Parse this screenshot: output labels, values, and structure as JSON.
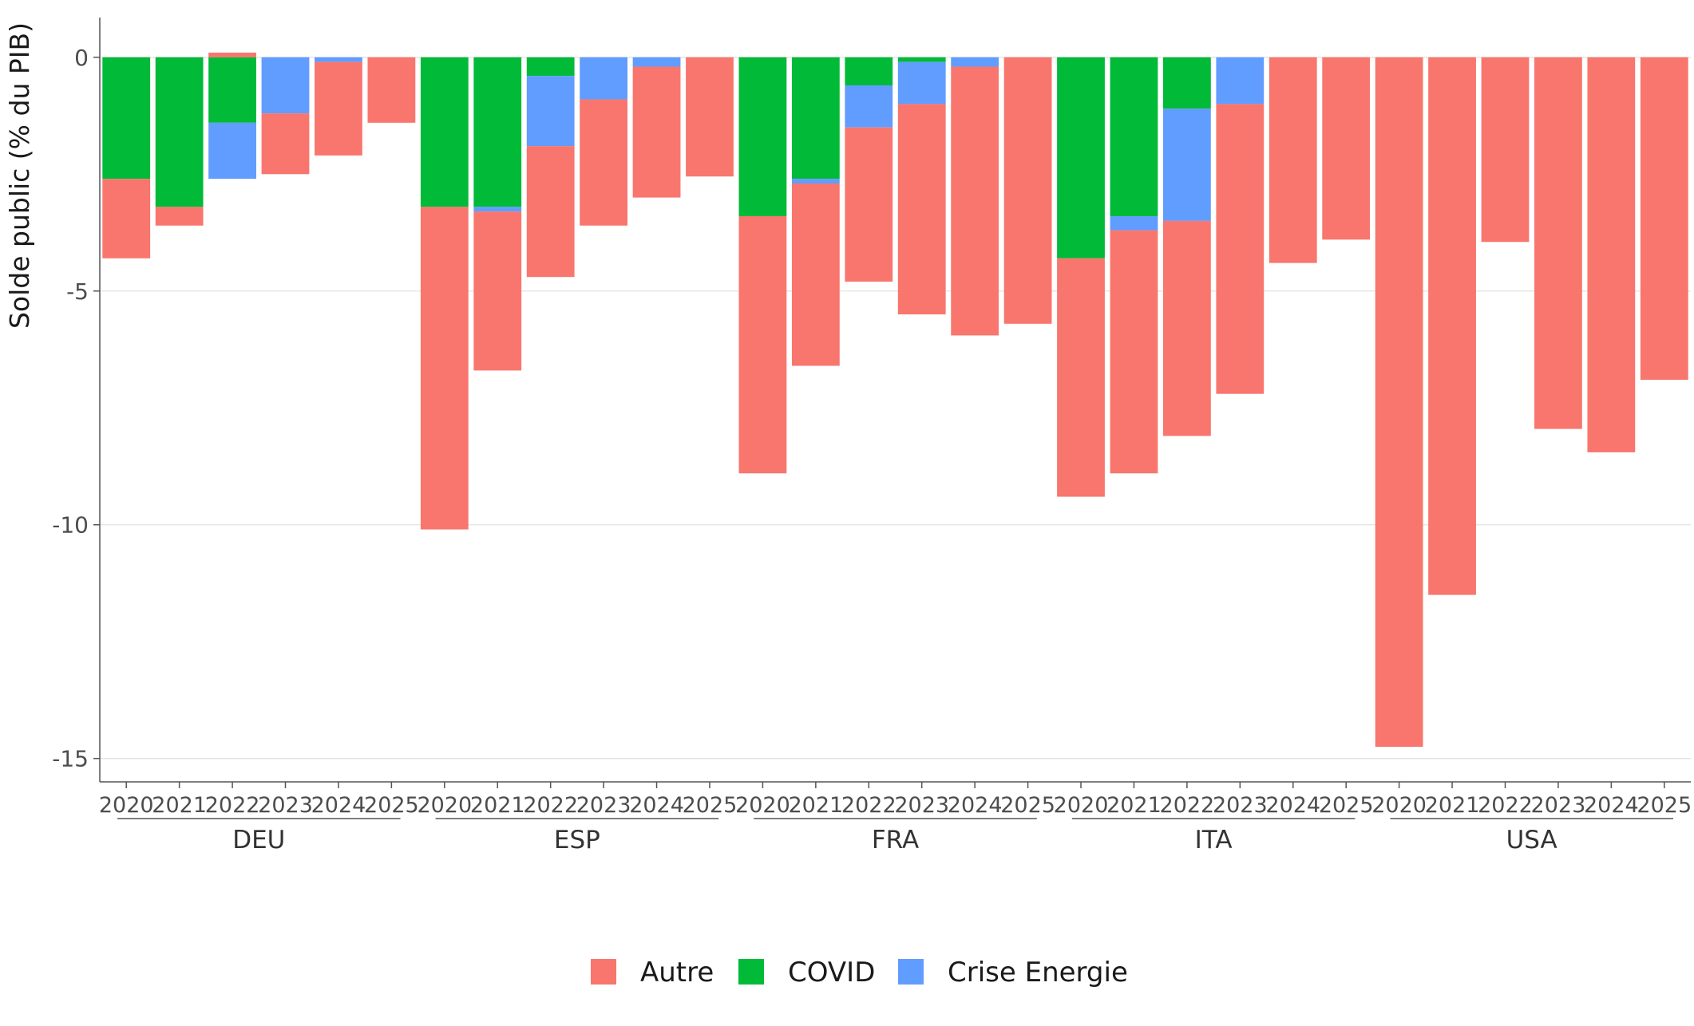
{
  "chart_data": {
    "type": "bar",
    "stacked": true,
    "ylabel": "Solde public (% du PIB)",
    "ylim": [
      -15.5,
      0.85
    ],
    "yticks": [
      0,
      -5,
      -10,
      -15
    ],
    "grid": true,
    "legend_position": "bottom",
    "years": [
      "2020",
      "2021",
      "2022",
      "2023",
      "2024",
      "2025"
    ],
    "series": [
      {
        "key": "autre",
        "name": "Autre",
        "color": "#F8766D"
      },
      {
        "key": "covid",
        "name": "COVID",
        "color": "#00BA38"
      },
      {
        "key": "energie",
        "name": "Crise Energie",
        "color": "#619CFF"
      }
    ],
    "groups": [
      {
        "name": "DEU",
        "bars": [
          {
            "year": "2020",
            "covid": -2.6,
            "energie": 0,
            "autre": -1.7
          },
          {
            "year": "2021",
            "covid": -3.2,
            "energie": 0,
            "autre": -0.4
          },
          {
            "year": "2022",
            "covid": -1.4,
            "energie": -1.2,
            "autre": 0.1
          },
          {
            "year": "2023",
            "covid": 0,
            "energie": -1.2,
            "autre": -1.3
          },
          {
            "year": "2024",
            "covid": 0,
            "energie": -0.1,
            "autre": -2.0
          },
          {
            "year": "2025",
            "covid": 0,
            "energie": 0,
            "autre": -1.4
          }
        ]
      },
      {
        "name": "ESP",
        "bars": [
          {
            "year": "2020",
            "covid": -3.2,
            "energie": 0,
            "autre": -6.9
          },
          {
            "year": "2021",
            "covid": -3.2,
            "energie": -0.1,
            "autre": -3.4
          },
          {
            "year": "2022",
            "covid": -0.4,
            "energie": -1.5,
            "autre": -2.8
          },
          {
            "year": "2023",
            "covid": 0,
            "energie": -0.9,
            "autre": -2.7
          },
          {
            "year": "2024",
            "covid": 0,
            "energie": -0.2,
            "autre": -2.8
          },
          {
            "year": "2025",
            "covid": 0,
            "energie": 0,
            "autre": -2.55
          }
        ]
      },
      {
        "name": "FRA",
        "bars": [
          {
            "year": "2020",
            "covid": -3.4,
            "energie": 0,
            "autre": -5.5
          },
          {
            "year": "2021",
            "covid": -2.6,
            "energie": -0.1,
            "autre": -3.9
          },
          {
            "year": "2022",
            "covid": -0.6,
            "energie": -0.9,
            "autre": -3.3
          },
          {
            "year": "2023",
            "covid": -0.1,
            "energie": -0.9,
            "autre": -4.5
          },
          {
            "year": "2024",
            "covid": 0,
            "energie": -0.2,
            "autre": -5.75
          },
          {
            "year": "2025",
            "covid": 0,
            "energie": 0,
            "autre": -5.7
          }
        ]
      },
      {
        "name": "ITA",
        "bars": [
          {
            "year": "2020",
            "covid": -4.3,
            "energie": 0,
            "autre": -5.1
          },
          {
            "year": "2021",
            "covid": -3.4,
            "energie": -0.3,
            "autre": -5.2
          },
          {
            "year": "2022",
            "covid": -1.1,
            "energie": -2.4,
            "autre": -4.6
          },
          {
            "year": "2023",
            "covid": 0,
            "energie": -1.0,
            "autre": -6.2
          },
          {
            "year": "2024",
            "covid": 0,
            "energie": 0,
            "autre": -4.4
          },
          {
            "year": "2025",
            "covid": 0,
            "energie": 0,
            "autre": -3.9
          }
        ]
      },
      {
        "name": "USA",
        "bars": [
          {
            "year": "2020",
            "covid": 0,
            "energie": 0,
            "autre": -14.75
          },
          {
            "year": "2021",
            "covid": 0,
            "energie": 0,
            "autre": -11.5
          },
          {
            "year": "2022",
            "covid": 0,
            "energie": 0,
            "autre": -3.95
          },
          {
            "year": "2023",
            "covid": 0,
            "energie": 0,
            "autre": -7.95
          },
          {
            "year": "2024",
            "covid": 0,
            "energie": 0,
            "autre": -8.45
          },
          {
            "year": "2025",
            "covid": 0,
            "energie": 0,
            "autre": -6.9
          }
        ]
      }
    ]
  }
}
